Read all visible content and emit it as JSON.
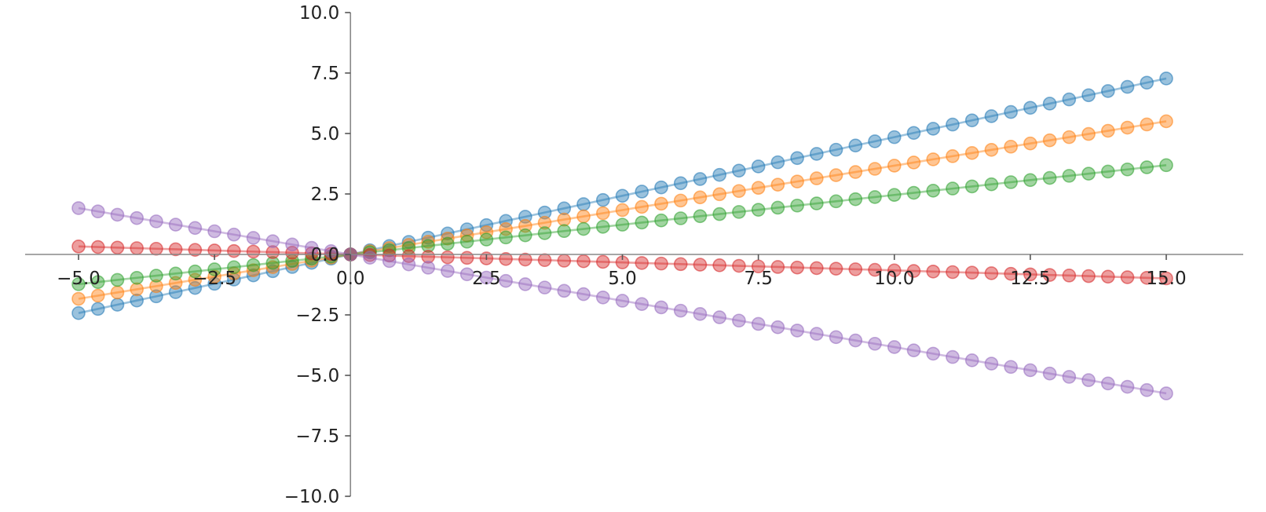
{
  "chart_data": {
    "type": "line",
    "title": "",
    "xlabel": "",
    "ylabel": "",
    "xlim": [
      -5.0,
      15.0
    ],
    "ylim": [
      -10.0,
      10.0
    ],
    "xticks": [
      "−5.0",
      "−2.5",
      "0.0",
      "2.5",
      "5.0",
      "7.5",
      "10.0",
      "12.5",
      "15.0"
    ],
    "yticks": [
      "−10.0",
      "−7.5",
      "−5.0",
      "−2.5",
      "0.0",
      "2.5",
      "5.0",
      "7.5",
      "10.0"
    ],
    "xtick_values": [
      -5.0,
      -2.5,
      0.0,
      2.5,
      5.0,
      7.5,
      10.0,
      12.5,
      15.0
    ],
    "ytick_values": [
      -10.0,
      -7.5,
      -5.0,
      -2.5,
      0.0,
      2.5,
      5.0,
      7.5,
      10.0
    ],
    "grid": false,
    "spines": "centered at origin",
    "x": [
      -5.0,
      -4.642857,
      -4.285714,
      -3.928571,
      -3.571429,
      -3.214286,
      -2.857143,
      -2.5,
      -2.142857,
      -1.785714,
      -1.428571,
      -1.071429,
      -0.714286,
      -0.357143,
      0.0,
      0.357143,
      0.714286,
      1.071429,
      1.428571,
      1.785714,
      2.142857,
      2.5,
      2.857143,
      3.214286,
      3.571429,
      3.928571,
      4.285714,
      4.642857,
      5.0,
      5.357143,
      5.714286,
      6.071429,
      6.428571,
      6.785714,
      7.142857,
      7.5,
      7.857143,
      8.214286,
      8.571429,
      8.928571,
      9.285714,
      9.642857,
      10.0,
      10.357143,
      10.714286,
      11.071429,
      11.428571,
      11.785714,
      12.142857,
      12.5,
      12.857143,
      13.214286,
      13.571429,
      13.928571,
      14.285714,
      14.642857,
      15.0
    ],
    "series": [
      {
        "color": "#1f77b4",
        "slope": 0.485
      },
      {
        "color": "#ff7f0e",
        "slope": 0.367
      },
      {
        "color": "#2ca02c",
        "slope": 0.246
      },
      {
        "color": "#d62728",
        "slope": -0.066
      },
      {
        "color": "#9467bd",
        "slope": -0.383
      }
    ]
  }
}
